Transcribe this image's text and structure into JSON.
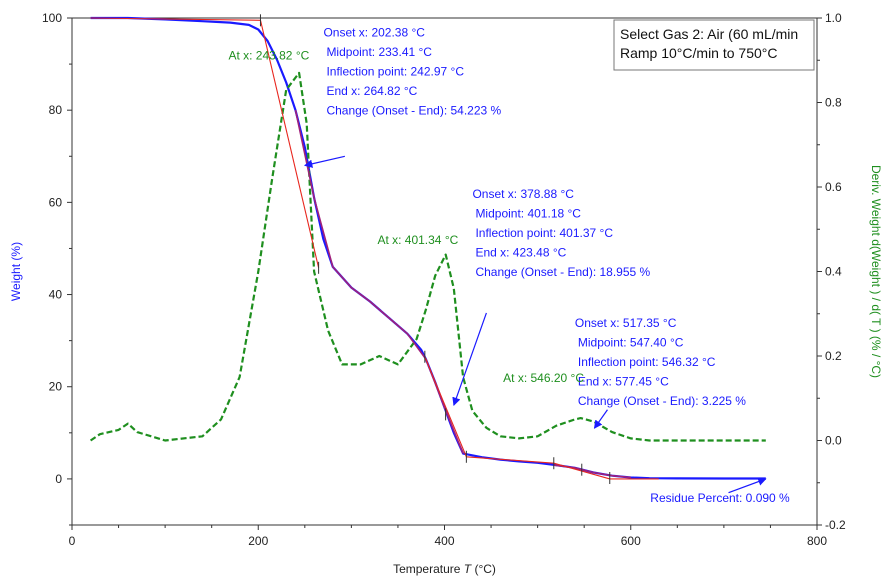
{
  "chart_data": {
    "type": "line",
    "legend_box": [
      "Select Gas 2: Air (60 mL/min",
      "Ramp 10°C/min to 750°C"
    ],
    "xlabel": "Temperature",
    "xlabel_var": "T",
    "xlabel_unit": "(°C)",
    "ylabel": "Weight  (%)",
    "y2label": "Deriv. Weight d(Weight ) / d(  T ) (% / °C)",
    "xlim": [
      0,
      800
    ],
    "ylim": [
      -10,
      100
    ],
    "y2lim": [
      -0.2,
      1.0
    ],
    "x_ticks": [
      0,
      200,
      400,
      600,
      800
    ],
    "x_tick_labels": [
      "0",
      "200",
      "400",
      "600",
      "800"
    ],
    "y_ticks": [
      0,
      20,
      40,
      60,
      80,
      100
    ],
    "y_tick_labels": [
      "0",
      "20",
      "40",
      "60",
      "80",
      "100"
    ],
    "y2_ticks": [
      -0.2,
      0.0,
      0.2,
      0.4,
      0.6,
      0.8,
      1.0
    ],
    "y2_tick_labels": [
      "-0.2",
      "0.0",
      "0.2",
      "0.4",
      "0.6",
      "0.8",
      "1.0"
    ],
    "colors": {
      "weight": "#1a1aff",
      "deriv": "#1f8f1f",
      "tangent": "#e8261e",
      "overlay": "#a0207a",
      "annotation": "#1a1aff",
      "peak_label": "#1f8f1f"
    },
    "series": [
      {
        "axis": "left",
        "style": "solid",
        "x": [
          20,
          60,
          100,
          140,
          170,
          190,
          200,
          210,
          220,
          230,
          240,
          250,
          260,
          270,
          280,
          300,
          320,
          340,
          360,
          375,
          380,
          390,
          400,
          410,
          420,
          440,
          460,
          480,
          500,
          520,
          540,
          560,
          580,
          600,
          620,
          650,
          700,
          745
        ],
        "y": [
          100,
          100,
          99.7,
          99.3,
          99,
          98.5,
          97.5,
          95,
          91,
          86,
          80,
          72,
          61,
          52,
          46,
          41.5,
          38.5,
          35,
          31.5,
          28,
          26,
          21,
          15.5,
          10,
          5.5,
          4.7,
          4.2,
          3.8,
          3.5,
          3.0,
          2.4,
          1.4,
          0.7,
          0.3,
          0.15,
          0.1,
          0.09,
          0.09
        ]
      },
      {
        "axis": "right",
        "style": "dashed",
        "x": [
          20,
          30,
          50,
          60,
          70,
          100,
          140,
          160,
          180,
          200,
          215,
          230,
          243.82,
          252,
          260,
          275,
          290,
          310,
          330,
          350,
          370,
          380,
          390,
          401.34,
          410,
          420,
          430,
          445,
          460,
          480,
          500,
          520,
          540,
          546.2,
          560,
          580,
          600,
          620,
          650,
          700,
          745
        ],
        "y": [
          0.0,
          0.015,
          0.025,
          0.04,
          0.02,
          0.0,
          0.01,
          0.05,
          0.15,
          0.4,
          0.62,
          0.83,
          0.87,
          0.75,
          0.4,
          0.26,
          0.18,
          0.18,
          0.2,
          0.18,
          0.24,
          0.31,
          0.39,
          0.44,
          0.36,
          0.15,
          0.07,
          0.03,
          0.01,
          0.005,
          0.01,
          0.035,
          0.05,
          0.053,
          0.045,
          0.02,
          0.005,
          0.0,
          0.0,
          0.0,
          0.0
        ]
      }
    ],
    "tangent_lines": [
      [
        [
          20,
          100
        ],
        [
          202.38,
          99.5
        ],
        [
          264.82,
          45.8
        ]
      ],
      [
        [
          378.88,
          26.5
        ],
        [
          423.48,
          4.8
        ],
        [
          517.35,
          3.4
        ]
      ],
      [
        [
          517.35,
          3.4
        ],
        [
          577.45,
          0.0
        ],
        [
          630,
          0.0
        ]
      ]
    ],
    "overlay_segments": [
      {
        "x": [
          240,
          260,
          280,
          300,
          320,
          340,
          360,
          380,
          400,
          420
        ],
        "y": [
          80,
          61,
          46,
          41.5,
          38.5,
          35,
          31.5,
          26,
          15.5,
          5.5
        ]
      },
      {
        "x": [
          517,
          540,
          560,
          580,
          600
        ],
        "y": [
          3.0,
          2.4,
          1.4,
          0.7,
          0.3
        ]
      }
    ],
    "tick_marks": [
      [
        202.38,
        99.5
      ],
      [
        264.82,
        45.8
      ],
      [
        378.88,
        26.5
      ],
      [
        401.18,
        14.0
      ],
      [
        423.48,
        4.8
      ],
      [
        517.35,
        3.4
      ],
      [
        547.4,
        2.0
      ],
      [
        577.45,
        0.2
      ]
    ],
    "annotations": [
      {
        "lines": [
          "Onset x: 202.38 °C",
          "Midpoint: 233.41 °C",
          "Inflection point: 242.97 °C",
          "End x: 264.82 °C",
          "Change (Onset - End): 54.223 %"
        ],
        "pos": [
          270,
          96
        ],
        "indent": [
          0,
          0,
          0,
          0,
          0
        ]
      },
      {
        "lines": [
          "Onset x: 378.88 °C",
          "Midpoint: 401.18 °C",
          "Inflection point: 401.37 °C",
          "End x: 423.48 °C",
          "Change (Onset - End): 18.955 %"
        ],
        "pos": [
          430,
          61
        ],
        "indent": [
          0,
          0,
          0,
          0,
          0
        ]
      },
      {
        "lines": [
          "Onset x: 517.35 °C",
          "Midpoint: 547.40 °C",
          "Inflection point: 546.32 °C",
          "End x: 577.45 °C",
          "Change (Onset - End): 3.225 %"
        ],
        "pos": [
          540,
          33
        ],
        "indent": [
          0,
          0,
          0,
          0,
          0
        ]
      }
    ],
    "arrows": [
      {
        "from": [
          293,
          70
        ],
        "to": [
          250,
          68
        ]
      },
      {
        "from": [
          445,
          36
        ],
        "to": [
          410,
          16
        ]
      },
      {
        "from": [
          575,
          15
        ],
        "to": [
          561,
          11
        ]
      },
      {
        "from": [
          705,
          -3
        ],
        "to": [
          745,
          0
        ]
      }
    ],
    "peak_labels": [
      {
        "text": "At x: 243.82 °C",
        "pos": [
          168,
          91
        ]
      },
      {
        "text": "At x: 401.34 °C",
        "pos": [
          328,
          51
        ]
      },
      {
        "text": "At x: 546.20 °C",
        "pos": [
          463,
          21
        ]
      }
    ],
    "residue_label": {
      "text": "Residue Percent: 0.090 %",
      "pos": [
        621,
        -5
      ]
    }
  }
}
